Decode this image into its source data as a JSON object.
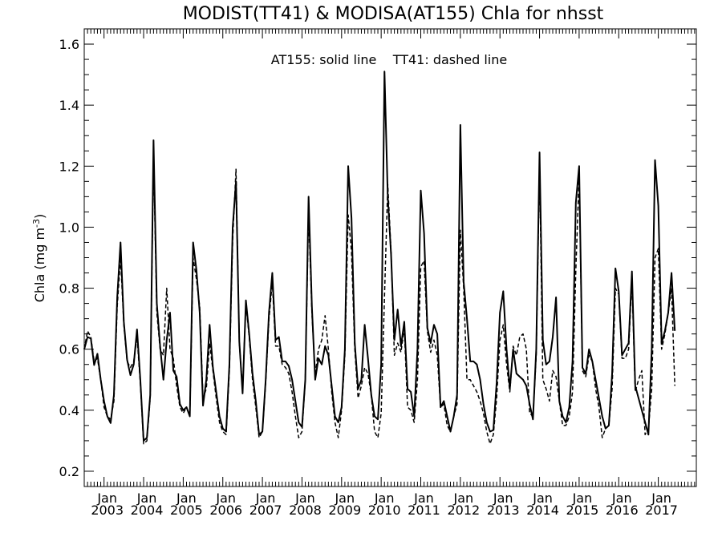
{
  "chart_data": {
    "type": "line",
    "title": "MODIST(TT41) & MODISA(AT155)  Chla for nhsst",
    "ylabel": "Chla (mg m",
    "ylabel_sup": "-3",
    "ylabel_close": ")",
    "xlabel": "",
    "annotation": "AT155: solid line    TT41: dashed line",
    "ylim": [
      0.15,
      1.65
    ],
    "yticks": [
      0.2,
      0.4,
      0.6,
      0.8,
      1.0,
      1.2,
      1.4,
      1.6
    ],
    "ytick_labels": [
      "0.2",
      "0.4",
      "0.6",
      "0.8",
      "1.0",
      "1.2",
      "1.4",
      "1.6"
    ],
    "xlim": [
      2002.5,
      2017.96
    ],
    "xtick_years": [
      2003,
      2004,
      2005,
      2006,
      2007,
      2008,
      2009,
      2010,
      2011,
      2012,
      2013,
      2014,
      2015,
      2016,
      2017
    ],
    "xtick_month_label": "Jan",
    "xtick_year_labels": [
      "2003",
      "2004",
      "2005",
      "2006",
      "2007",
      "2008",
      "2009",
      "2010",
      "2011",
      "2012",
      "2013",
      "2014",
      "2015",
      "2016",
      "2017"
    ],
    "start_date": "2002-07",
    "series": [
      {
        "style": "solid",
        "values": [
          0.6,
          0.64,
          0.635,
          0.548,
          0.585,
          0.5,
          0.43,
          0.38,
          0.358,
          0.45,
          0.77,
          0.95,
          0.69,
          0.565,
          0.515,
          0.55,
          0.665,
          0.5,
          0.3,
          0.31,
          0.45,
          1.285,
          0.75,
          0.61,
          0.5,
          0.63,
          0.72,
          0.53,
          0.51,
          0.42,
          0.4,
          0.41,
          0.38,
          0.95,
          0.86,
          0.72,
          0.415,
          0.5,
          0.68,
          0.54,
          0.46,
          0.38,
          0.34,
          0.33,
          0.55,
          1.0,
          1.15,
          0.625,
          0.455,
          0.76,
          0.65,
          0.52,
          0.43,
          0.32,
          0.33,
          0.5,
          0.72,
          0.85,
          0.63,
          0.64,
          0.56,
          0.56,
          0.545,
          0.5,
          0.43,
          0.36,
          0.345,
          0.5,
          1.1,
          0.74,
          0.5,
          0.57,
          0.55,
          0.61,
          0.58,
          0.48,
          0.38,
          0.36,
          0.41,
          0.6,
          1.2,
          1.03,
          0.62,
          0.47,
          0.5,
          0.68,
          0.57,
          0.45,
          0.38,
          0.37,
          0.55,
          1.51,
          1.1,
          0.91,
          0.63,
          0.73,
          0.61,
          0.69,
          0.47,
          0.46,
          0.38,
          0.6,
          1.12,
          0.98,
          0.67,
          0.62,
          0.68,
          0.65,
          0.41,
          0.43,
          0.38,
          0.33,
          0.38,
          0.45,
          1.335,
          0.82,
          0.7,
          0.56,
          0.56,
          0.55,
          0.5,
          0.42,
          0.36,
          0.33,
          0.335,
          0.49,
          0.72,
          0.79,
          0.6,
          0.47,
          0.6,
          0.52,
          0.51,
          0.5,
          0.48,
          0.42,
          0.37,
          0.6,
          1.245,
          0.63,
          0.55,
          0.56,
          0.64,
          0.77,
          0.43,
          0.38,
          0.36,
          0.41,
          0.56,
          1.08,
          1.2,
          0.54,
          0.52,
          0.6,
          0.56,
          0.5,
          0.44,
          0.38,
          0.34,
          0.35,
          0.52,
          0.865,
          0.79,
          0.58,
          0.6,
          0.62,
          0.855,
          0.48,
          0.44,
          0.4,
          0.36,
          0.32,
          0.6,
          1.22,
          1.07,
          0.62,
          0.66,
          0.72,
          0.85,
          0.66
        ]
      },
      {
        "style": "dashed",
        "values": [
          0.6,
          0.66,
          0.64,
          0.56,
          0.57,
          0.5,
          0.41,
          0.38,
          0.37,
          0.43,
          0.74,
          0.9,
          0.68,
          0.56,
          0.54,
          0.56,
          0.64,
          0.49,
          0.29,
          0.3,
          0.44,
          1.24,
          0.72,
          0.6,
          0.58,
          0.8,
          0.6,
          0.57,
          0.48,
          0.41,
          0.39,
          0.41,
          0.38,
          0.9,
          0.83,
          0.74,
          0.44,
          0.47,
          0.62,
          0.53,
          0.44,
          0.36,
          0.33,
          0.32,
          0.53,
          0.96,
          1.19,
          0.62,
          0.47,
          0.75,
          0.64,
          0.5,
          0.41,
          0.31,
          0.33,
          0.49,
          0.7,
          0.82,
          0.61,
          0.61,
          0.55,
          0.54,
          0.52,
          0.46,
          0.38,
          0.31,
          0.33,
          0.5,
          1.05,
          0.72,
          0.52,
          0.6,
          0.63,
          0.71,
          0.6,
          0.46,
          0.36,
          0.31,
          0.4,
          0.58,
          1.04,
          0.92,
          0.6,
          0.44,
          0.48,
          0.54,
          0.52,
          0.45,
          0.33,
          0.31,
          0.39,
          0.77,
          1.14,
          0.92,
          0.58,
          0.62,
          0.59,
          0.67,
          0.41,
          0.4,
          0.36,
          0.5,
          0.87,
          0.89,
          0.66,
          0.59,
          0.63,
          0.58,
          0.41,
          0.42,
          0.35,
          0.33,
          0.38,
          0.42,
          0.99,
          0.8,
          0.5,
          0.5,
          0.48,
          0.46,
          0.43,
          0.39,
          0.33,
          0.29,
          0.32,
          0.44,
          0.63,
          0.68,
          0.55,
          0.46,
          0.61,
          0.58,
          0.64,
          0.65,
          0.6,
          0.39,
          0.38,
          0.58,
          1.21,
          0.5,
          0.47,
          0.43,
          0.53,
          0.51,
          0.43,
          0.35,
          0.35,
          0.38,
          0.46,
          0.86,
          1.17,
          0.53,
          0.51,
          0.58,
          0.56,
          0.47,
          0.41,
          0.31,
          0.34,
          0.35,
          0.47,
          0.8,
          0.78,
          0.57,
          0.57,
          0.6,
          0.83,
          0.46,
          0.5,
          0.53,
          0.32,
          0.34,
          0.47,
          0.9,
          0.93,
          0.6,
          0.65,
          0.72,
          0.8,
          0.48
        ]
      }
    ]
  }
}
